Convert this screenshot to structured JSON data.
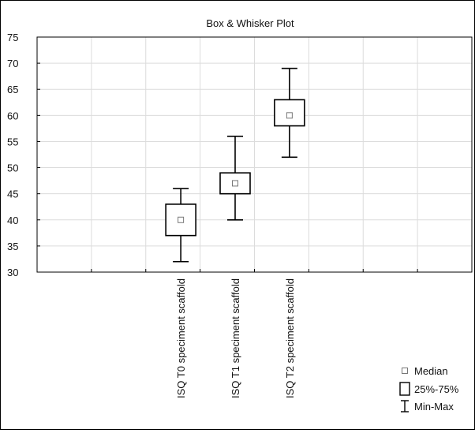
{
  "chart_data": {
    "type": "boxplot",
    "title": "Box & Whisker Plot",
    "categories": [
      "ISQ T0 speciment scaffold",
      "ISQ T1 speciment scaffold",
      "ISQ T2 speciment scaffold"
    ],
    "boxes": [
      {
        "min": 32,
        "q1": 37,
        "median": 40,
        "q3": 43,
        "max": 46
      },
      {
        "min": 40,
        "q1": 45,
        "median": 47,
        "q3": 49,
        "max": 56
      },
      {
        "min": 52,
        "q1": 58,
        "median": 60,
        "q3": 63,
        "max": 69
      }
    ],
    "y_ticks": [
      "30",
      "35",
      "40",
      "45",
      "50",
      "55",
      "60",
      "65",
      "70",
      "75"
    ],
    "ylim": [
      30,
      75
    ],
    "x_slots": 8,
    "category_slots": [
      3,
      4,
      5
    ],
    "grid": true,
    "legend_position": "bottom-right",
    "legend": [
      {
        "symbol": "median",
        "label": "Median"
      },
      {
        "symbol": "box",
        "label": "25%-75%"
      },
      {
        "symbol": "whisker",
        "label": "Min-Max"
      }
    ]
  }
}
